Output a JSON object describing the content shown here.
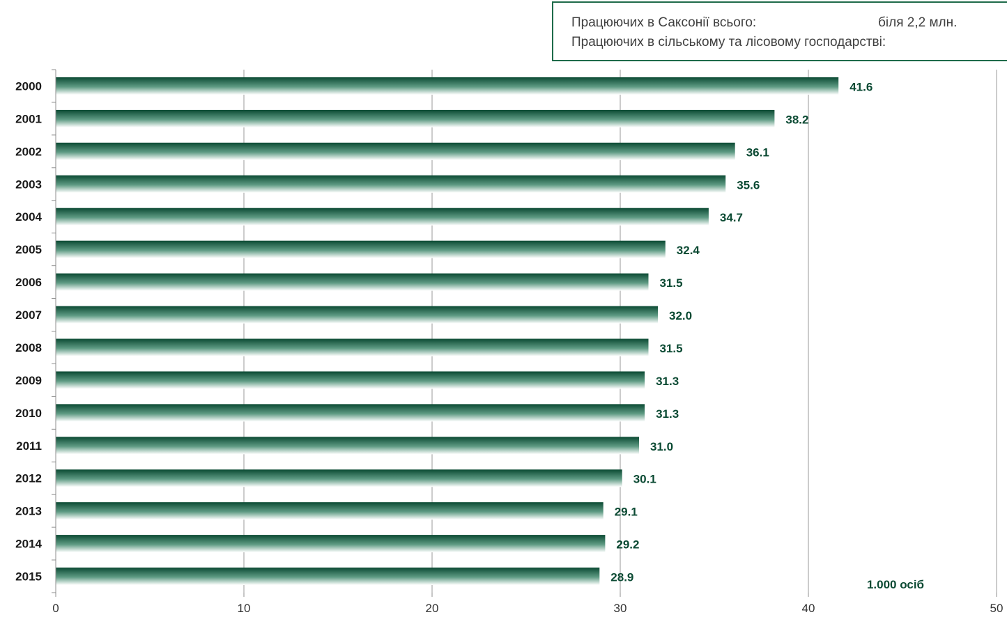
{
  "info": {
    "line1_label": "Працюючих в Саксонії всього:",
    "line1_value": "біля 2,2 млн.",
    "line2_label": "Працюючих в сільському та лісовому господарстві:"
  },
  "chart_data": {
    "type": "bar",
    "orientation": "horizontal",
    "categories": [
      "2000",
      "2001",
      "2002",
      "2003",
      "2004",
      "2005",
      "2006",
      "2007",
      "2008",
      "2009",
      "2010",
      "2011",
      "2012",
      "2013",
      "2014",
      "2015"
    ],
    "values": [
      41.6,
      38.2,
      36.1,
      35.6,
      34.7,
      32.4,
      31.5,
      32.0,
      31.5,
      31.3,
      31.3,
      31.0,
      30.1,
      29.1,
      29.2,
      28.9
    ],
    "data_labels": [
      "41.6",
      "38.2",
      "36.1",
      "35.6",
      "34.7",
      "32.4",
      "31.5",
      "32.0",
      "31.5",
      "31.3",
      "31.3",
      "31.0",
      "30.1",
      "29.1",
      "29.2",
      "28.9"
    ],
    "xticks": [
      "0",
      "10",
      "20",
      "30",
      "40",
      "50"
    ],
    "xlim": [
      0,
      50
    ],
    "unit_label": "1.000 осіб",
    "grid": true,
    "colors": {
      "bar_dark": "#0b4a33",
      "bar_light": "#ffffff",
      "label": "#0b4a33",
      "grid": "#9a9a9a",
      "axis": "#8c8c8c"
    }
  }
}
